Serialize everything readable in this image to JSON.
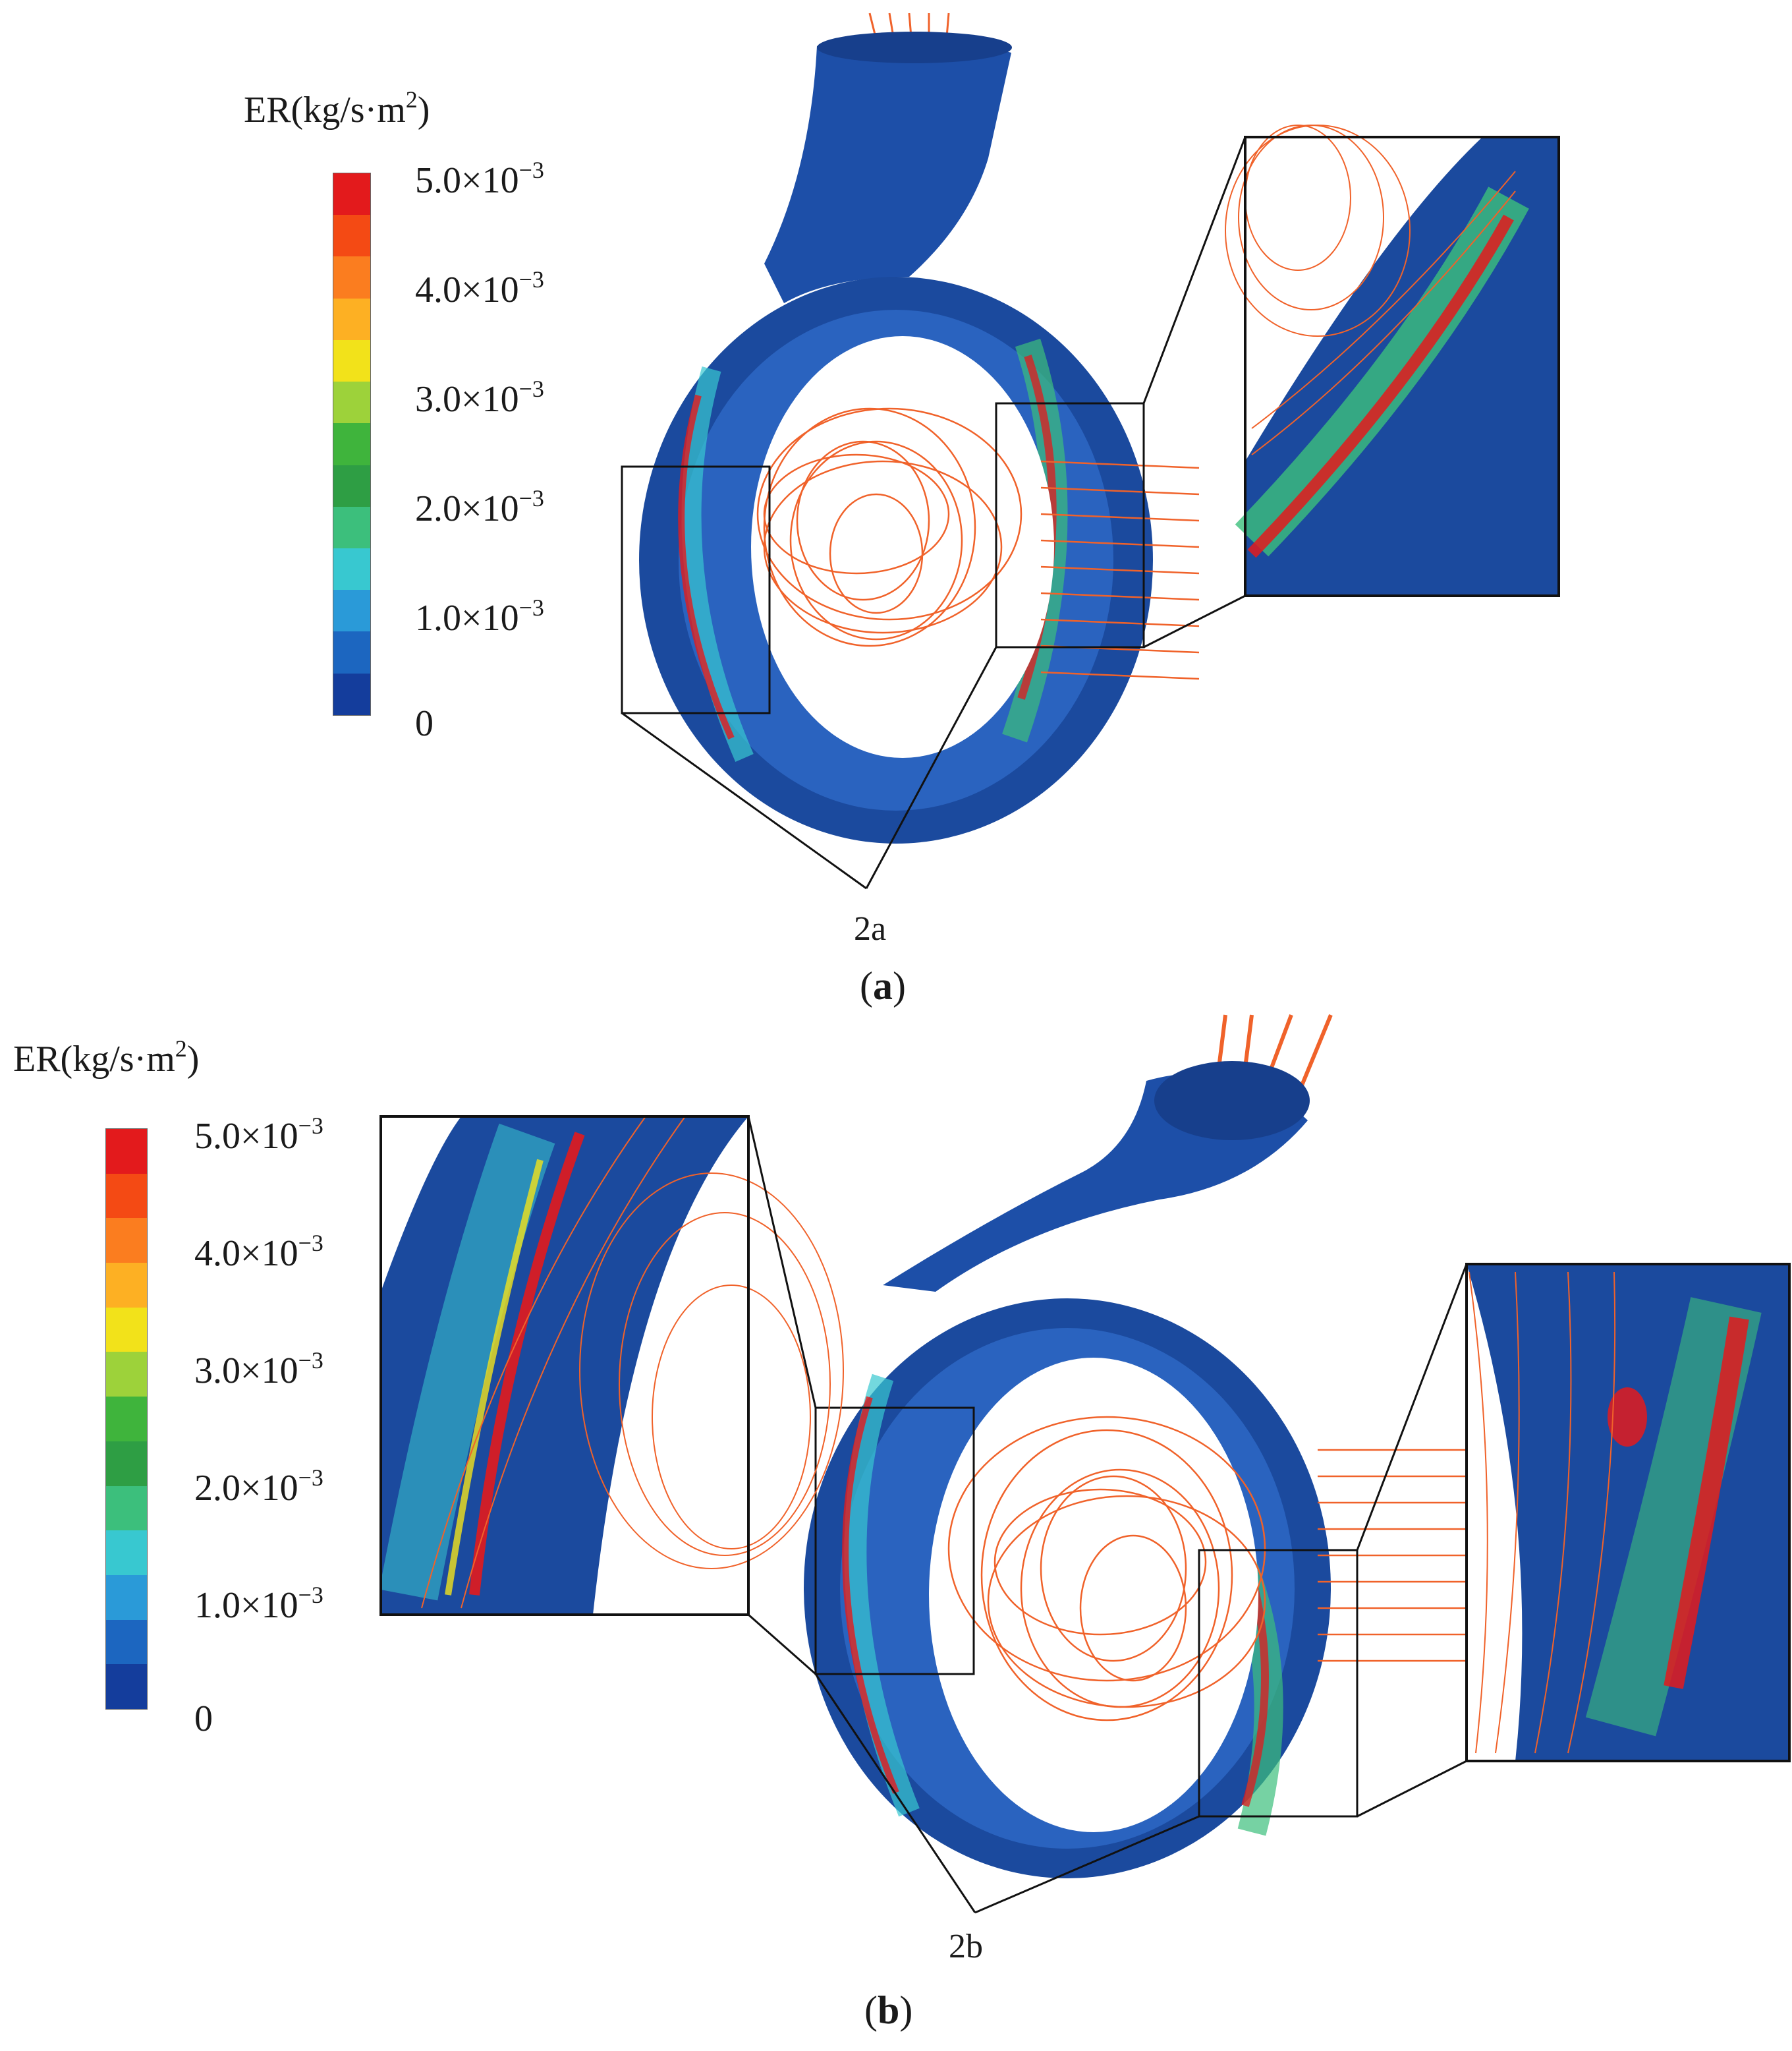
{
  "colorbar": {
    "title_prefix": "ER(kg/s·m",
    "title_sup": "2",
    "title_suffix": ")",
    "ticks": [
      {
        "mantissa": "5.0×10",
        "exp": "−3"
      },
      {
        "mantissa": "4.0×10",
        "exp": "−3"
      },
      {
        "mantissa": "3.0×10",
        "exp": "−3"
      },
      {
        "mantissa": "2.0×10",
        "exp": "−3"
      },
      {
        "mantissa": "1.0×10",
        "exp": "−3"
      },
      {
        "mantissa": "0",
        "exp": ""
      }
    ],
    "colors": [
      "#e31a1c",
      "#f44a14",
      "#fb7d1f",
      "#fdb023",
      "#f2e21a",
      "#9dd23a",
      "#3fb43c",
      "#2e9e44",
      "#3cbf7c",
      "#38c8d0",
      "#2a9ad8",
      "#1c66c0",
      "#143d9c"
    ]
  },
  "panels": [
    {
      "callout": "2a",
      "label_open": "(",
      "label_letter": "a",
      "label_close": ")"
    },
    {
      "callout": "2b",
      "label_open": "(",
      "label_letter": "b",
      "label_close": ")"
    }
  ]
}
